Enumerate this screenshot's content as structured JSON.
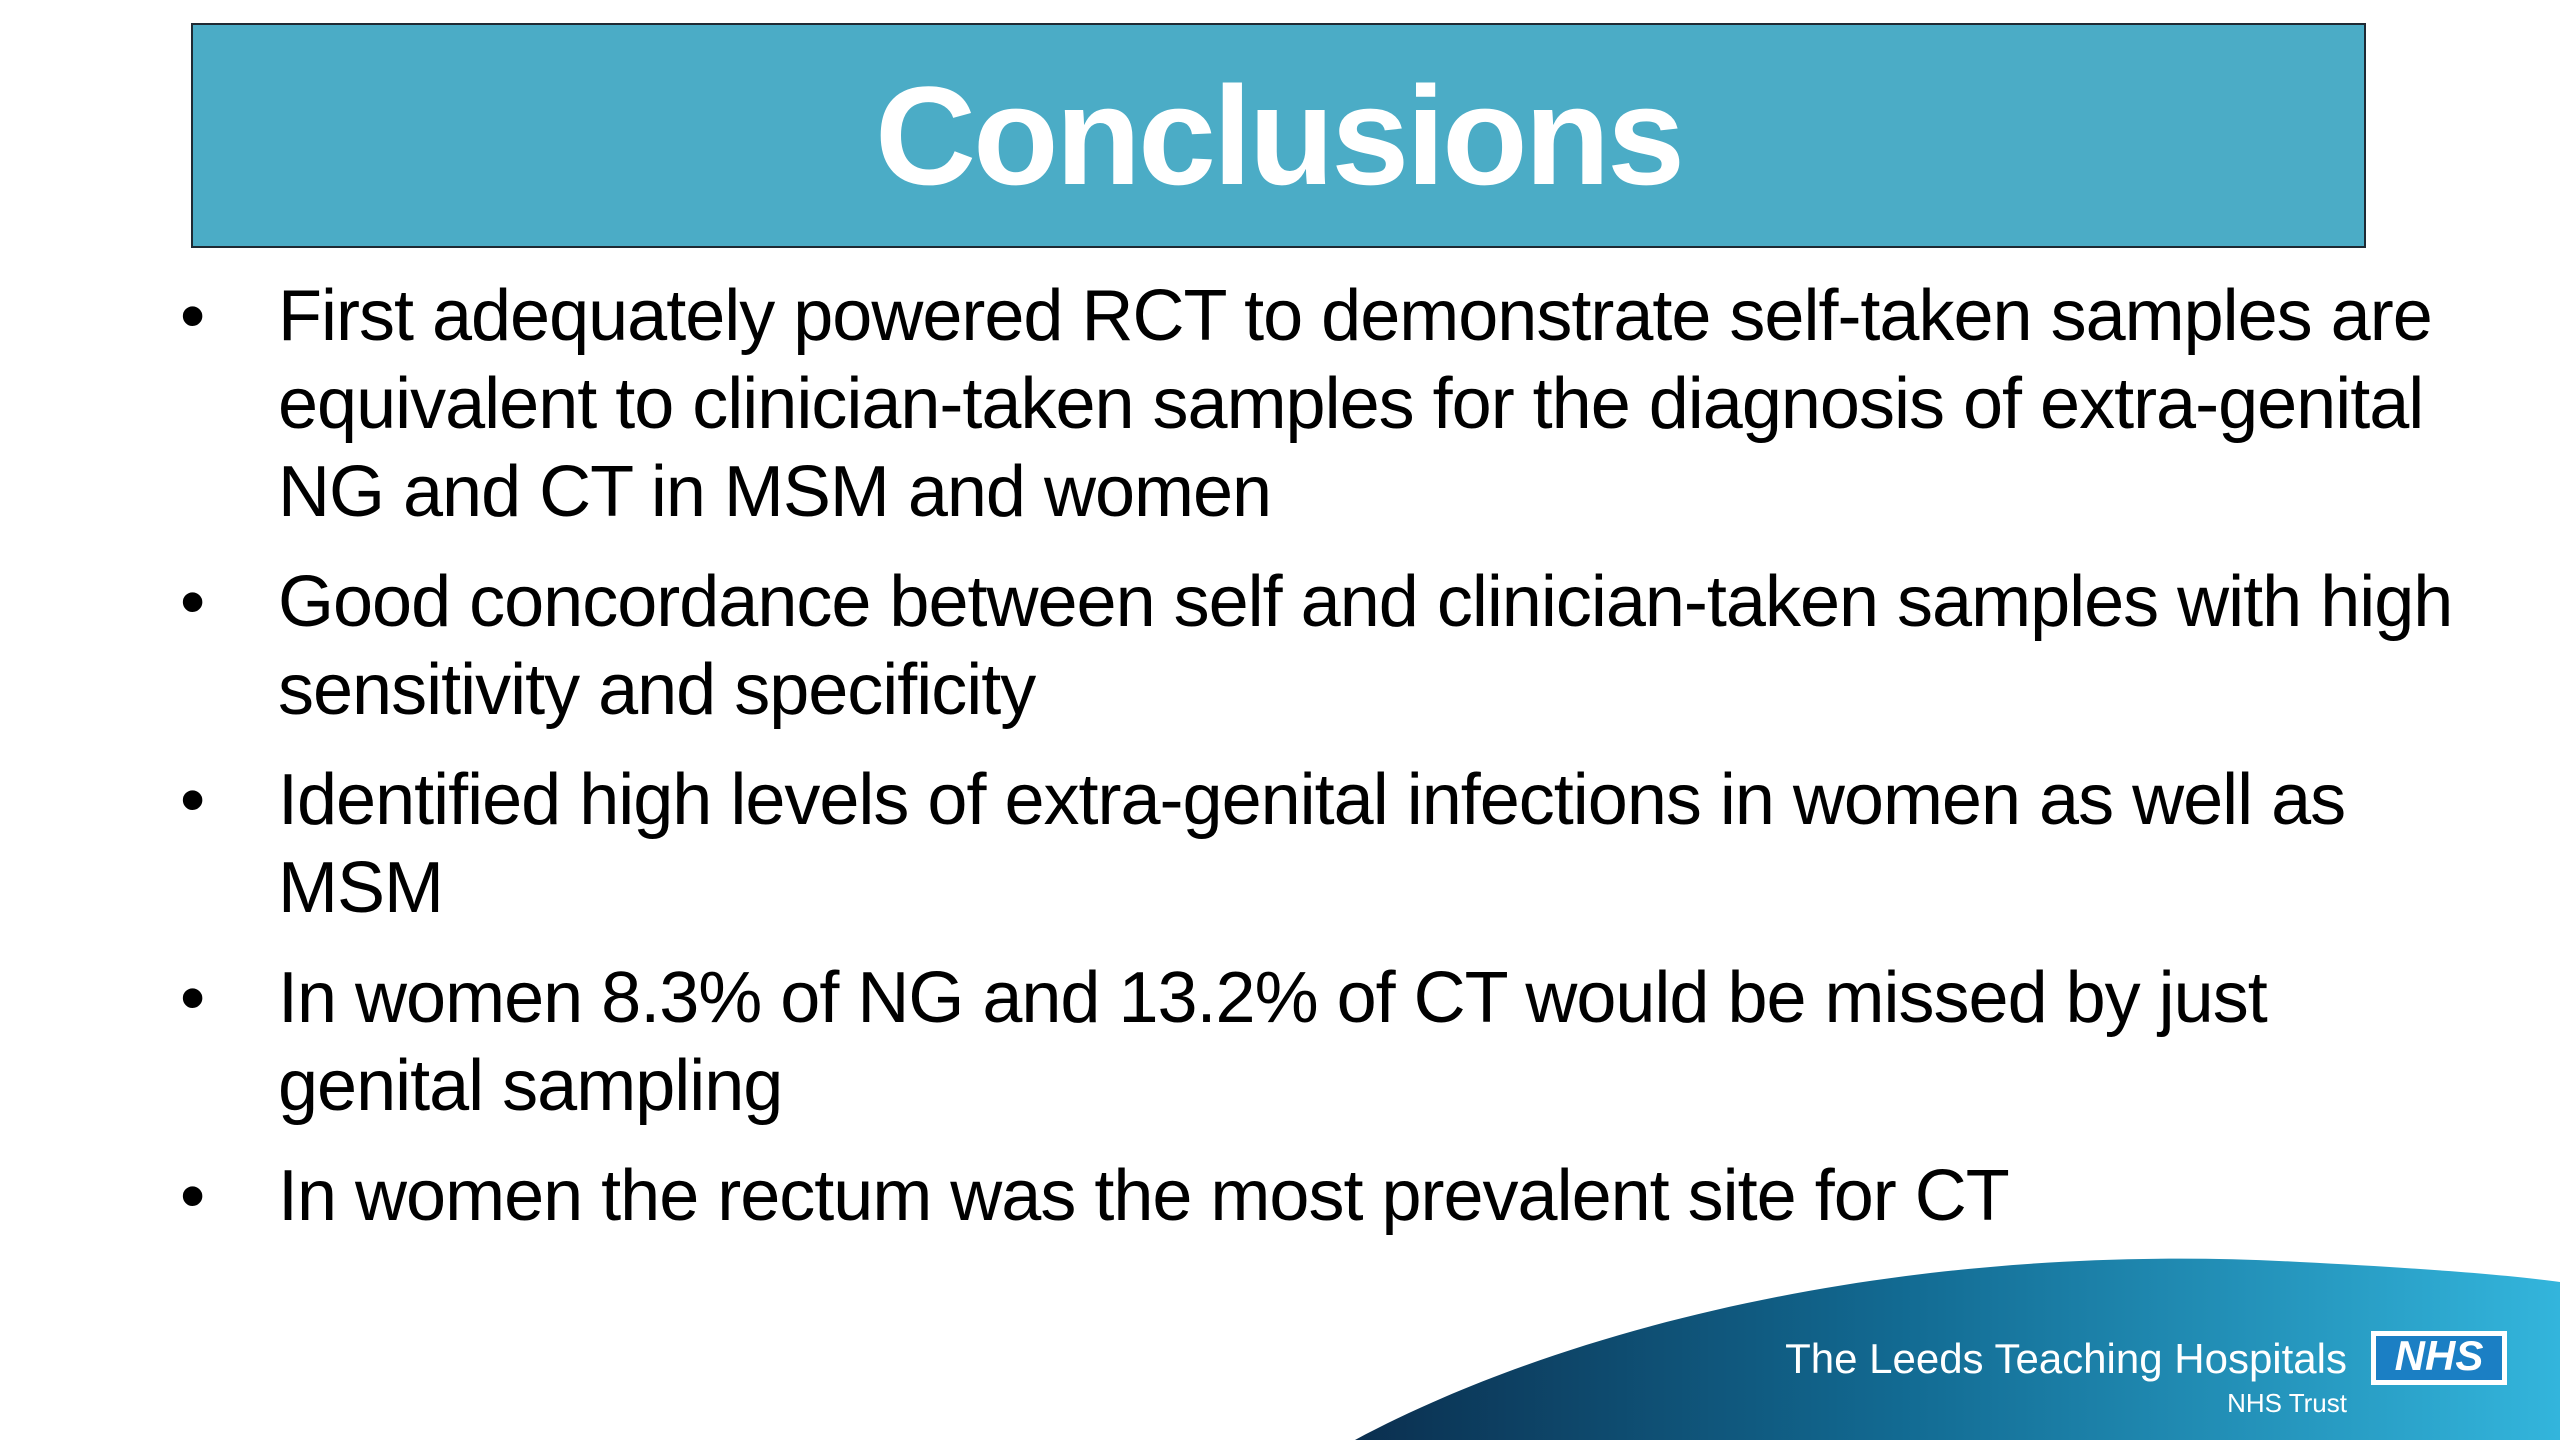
{
  "header": {
    "title": "Conclusions"
  },
  "bullets": [
    "First adequately powered RCT to demonstrate self-taken samples are equivalent to clinician-taken samples for the diagnosis of extra-genital NG and CT in MSM and women",
    "Good concordance between self and clinician-taken samples with high sensitivity and specificity",
    "Identified high levels of extra-genital infections in women as well as MSM",
    "In women 8.3% of NG and 13.2% of CT would be missed by just genital sampling",
    "In women the rectum was the most prevalent site for CT"
  ],
  "footer": {
    "organization": "The Leeds Teaching Hospitals",
    "logo": "NHS",
    "subtitle": "NHS Trust"
  }
}
